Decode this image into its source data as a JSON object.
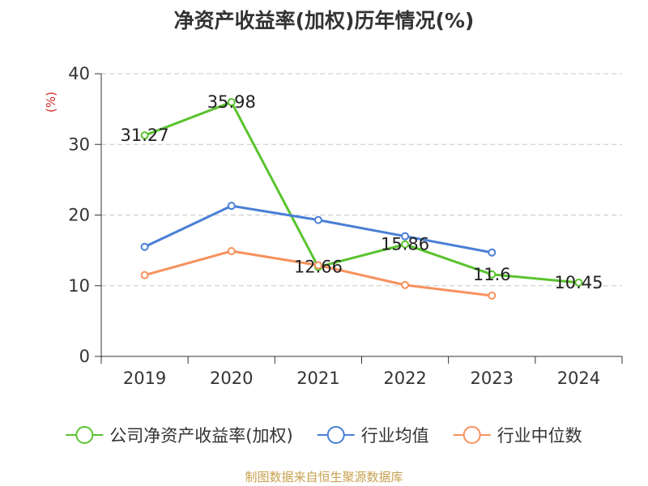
{
  "chart_data": {
    "type": "line",
    "title": "净资产收益率(加权)历年情况(%)",
    "ylabel": "(%)",
    "xlabel": "",
    "categories": [
      "2019",
      "2020",
      "2021",
      "2022",
      "2023",
      "2024"
    ],
    "ylim": [
      0,
      40
    ],
    "yticks": [
      0,
      10,
      20,
      30,
      40
    ],
    "grid": true,
    "legend_position": "bottom",
    "series": [
      {
        "name": "公司净资产收益率(加权)",
        "color": "#5ac32f",
        "values": [
          31.27,
          35.98,
          12.66,
          15.86,
          11.6,
          10.45
        ],
        "labels": [
          "31.27",
          "35.98",
          "12.66",
          "15.86",
          "11.6",
          "10.45"
        ]
      },
      {
        "name": "行业均值",
        "color": "#4a7fd6",
        "values": [
          15.5,
          21.3,
          19.3,
          17.0,
          14.7,
          null
        ]
      },
      {
        "name": "行业中位数",
        "color": "#f7915f",
        "values": [
          11.5,
          14.9,
          12.9,
          10.1,
          8.6,
          null
        ]
      }
    ]
  },
  "source": "制图数据来自恒生聚源数据库"
}
